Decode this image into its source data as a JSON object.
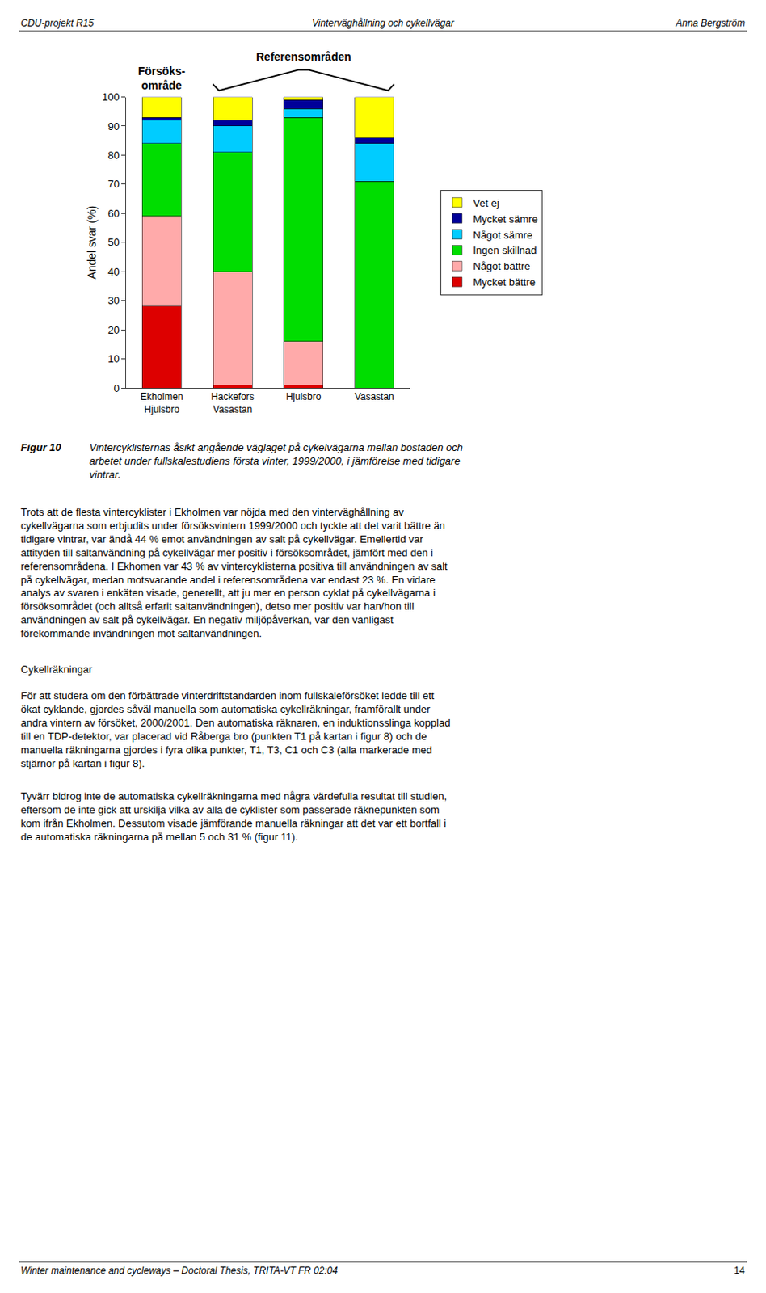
{
  "chart_data": {
    "type": "bar",
    "stacked": true,
    "categories": [
      "Ekholmen\nHjulsbro",
      "Hackefors\nVasastan",
      "Hjulsbro",
      "Vasastan"
    ],
    "ylabel": "Andel svar (%)",
    "ylim": [
      0,
      100
    ],
    "yticks": [
      0,
      10,
      20,
      30,
      40,
      50,
      60,
      70,
      80,
      90,
      100
    ],
    "grid": false,
    "legend": "right",
    "series": [
      {
        "name": "Mycket bättre",
        "color": "#dd0000",
        "values": [
          28,
          1,
          1,
          0
        ]
      },
      {
        "name": "Något bättre",
        "color": "#ffaaaa",
        "values": [
          31,
          39,
          15,
          0
        ]
      },
      {
        "name": "Ingen skillnad",
        "color": "#00dd00",
        "values": [
          25,
          41,
          77,
          71
        ]
      },
      {
        "name": "Något sämre",
        "color": "#00ccff",
        "values": [
          8,
          9,
          3,
          13
        ]
      },
      {
        "name": "Mycket sämre",
        "color": "#000099",
        "values": [
          1,
          2,
          3,
          2
        ]
      },
      {
        "name": "Vet ej",
        "color": "#ffff00",
        "values": [
          7,
          8,
          1,
          14
        ]
      }
    ],
    "annotations": [
      "CDU-projekt R15",
      "Vinterväghållning och cykellvägar",
      "Anna Bergström",
      "Winter maintenance and cycleways – Doctoral Thesis, TRITA-VT FR 02:04",
      "14",
      "Försöks-\nområde",
      "Referensområden",
      "Figur 10",
      "Vintercyklisternas åsikt angående väglaget på cykelvägarna mellan bostaden och\narbetet under fullskalestudiens första vinter, 1999/2000, i jämförelse med tidigare\nvintrar.",
      "Trots att de flesta vintercyklister i Ekholmen var nöjda med den vinterväghållning av\ncykellvägarna som erbjudits under försöksvintern 1999/2000 och tyckte att det varit bättre än\ntidigare vintrar, var ändå 44 % emot användningen av salt på cykellvägar. Emellertid var\nattityden till saltanvändning på cykellvägar mer positiv i försöksområdet, jämfört med den i\nreferensområdena. I Ekhomen var 43 % av vintercyklisterna positiva till användningen av salt\npå cykellvägar, medan motsvarande andel i referensområdena var endast 23 %. En vidare\nanalys av svaren i enkäten visade, generellt, att ju mer en person cyklat på cykellvägarna i\nförsöksområdet (och alltså erfarit saltanvändningen), detso mer positiv var han/hon till\nanvändningen av salt på cykellvägar. En negativ miljöpåverkan, var den vanligast\nförekommande invändningen mot saltanvändningen.",
      "Cykellräkningar",
      "För att studera om den förbättrade vinterdriftstandarden inom fullskaleförsöket ledde till ett\nökat cyklande, gjordes såväl manuella som automatiska cykellräkningar, framförallt under\nandra vintern av försöket, 2000/2001. Den automatiska räknaren, en induktionsslinga kopplad\ntill en TDP-detektor, var placerad vid Råberga bro (punkten T1 på kartan i figur 8) och de\nmanuella räkningarna gjordes i fyra olika punkter, T1, T3, C1 och C3 (alla markerade med\nstjärnor på kartan i figur 8).",
      "Tyvärr bidrog inte de automatiska cykellräkningarna med några värdefulla resultat till studien,\neftersom de inte gick att urskilja vilka av alla de cyklister som passerade räknepunkten som\nkom ifrån Ekholmen. Dessutom visade jämförande manuella räkningar att det var ett bortfall i\nde automatiska räkningarna på mellan 5 och 31 % (figur 11)."
    ]
  }
}
